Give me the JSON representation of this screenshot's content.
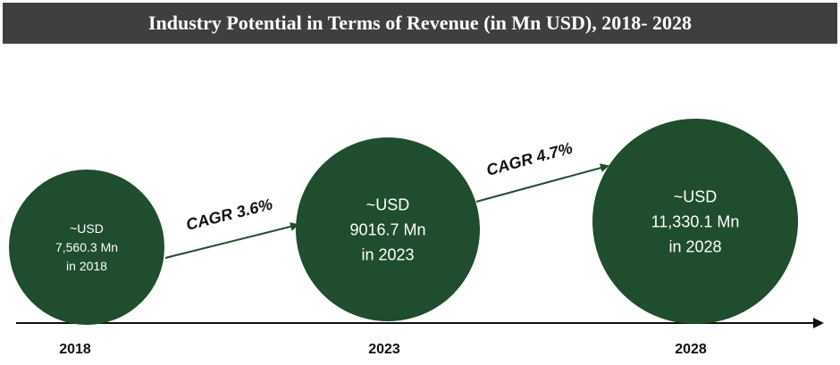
{
  "chart_data": {
    "type": "bubble",
    "title": "Industry Potential in Terms of Revenue (in Mn USD), 2018- 2028",
    "unit": "Mn USD",
    "colors": {
      "bubble": "#1f4d2d",
      "arrow": "#1f4d2d",
      "title_bg": "#3f3f3f"
    },
    "points": [
      {
        "year": "2018",
        "value": 7560.3,
        "lines": [
          "~USD",
          "7,560.3 Mn",
          "in 2018"
        ]
      },
      {
        "year": "2023",
        "value": 9016.7,
        "lines": [
          "~USD",
          "9016.7 Mn",
          "in 2023"
        ]
      },
      {
        "year": "2028",
        "value": 11330.1,
        "lines": [
          "~USD",
          "11,330.1 Mn",
          "in 2028"
        ]
      }
    ],
    "cagr": [
      {
        "label": "CAGR 3.6%",
        "from": "2018",
        "to": "2023"
      },
      {
        "label": "CAGR 4.7%",
        "from": "2023",
        "to": "2028"
      }
    ]
  }
}
